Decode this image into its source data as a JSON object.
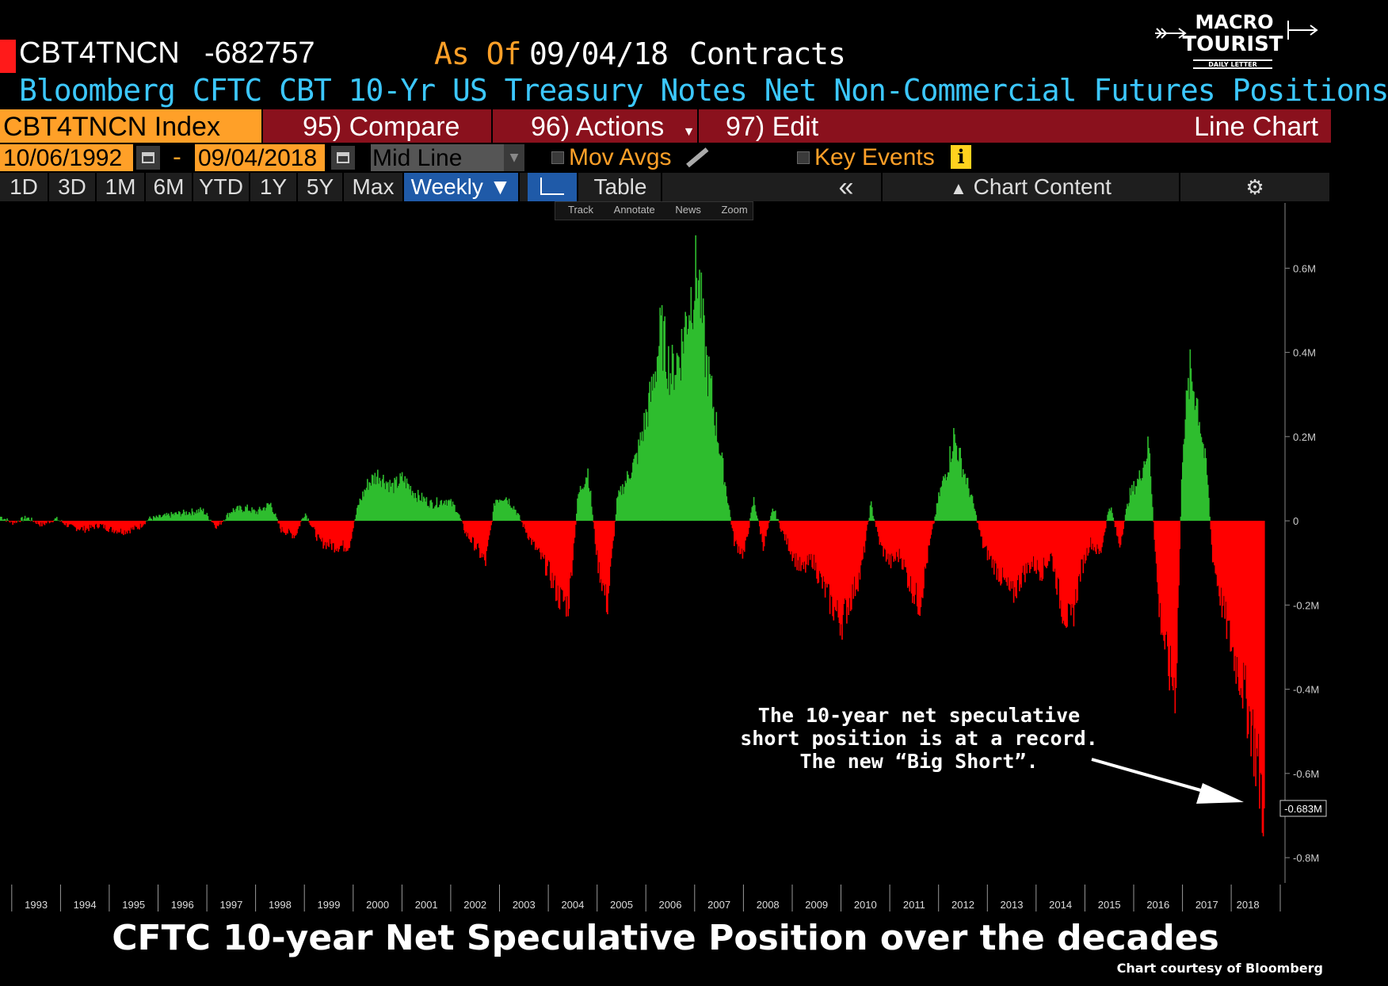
{
  "header": {
    "ticker": "CBT4TNCN",
    "last_value": "-682757",
    "as_of_label": "As Of",
    "as_of_date": "09/04/18",
    "units": "Contracts",
    "subtitle": "Bloomberg CFTC CBT 10-Yr US Treasury Notes Net Non-Commercial Futures Positions"
  },
  "menubar": {
    "index_label": "CBT4TNCN Index",
    "compare_label": "95) Compare",
    "actions_label": "96) Actions",
    "edit_label": "97) Edit",
    "chart_type_label": "Line Chart",
    "accent_color": "#ffa028",
    "bar_color": "#8a111d"
  },
  "datebar": {
    "start_date": "10/06/1992",
    "separator": "-",
    "end_date": "09/04/2018",
    "line_mode": "Mid Line",
    "mov_avgs_label": "Mov Avgs",
    "key_events_label": "Key Events",
    "info_label": "i"
  },
  "toolbar": {
    "ranges": [
      "1D",
      "3D",
      "1M",
      "6M",
      "YTD",
      "1Y",
      "5Y",
      "Max"
    ],
    "frequency": "Weekly ▼",
    "table_label": "Table",
    "collapse_label": "«",
    "chart_content_label": "Chart Content",
    "subtools": [
      "Track",
      "Annotate",
      "News",
      "Zoom"
    ]
  },
  "logo": {
    "line1": "MACRO",
    "line2": "TOURIST",
    "tagline": "DAILY LETTER"
  },
  "chart_data": {
    "type": "bar",
    "title": "CFTC 10-year Net Speculative Position over the decades",
    "xlabel": "",
    "ylabel": "",
    "x_range": [
      1992.76,
      2018.68
    ],
    "ylim": [
      -0.83,
      0.74
    ],
    "y_ticks": [
      {
        "value": 0.6,
        "label": "0.6M"
      },
      {
        "value": 0.4,
        "label": "0.4M"
      },
      {
        "value": 0.2,
        "label": "0.2M"
      },
      {
        "value": 0,
        "label": "0"
      },
      {
        "value": -0.2,
        "label": "-0.2M"
      },
      {
        "value": -0.4,
        "label": "-0.4M"
      },
      {
        "value": -0.6,
        "label": "-0.6M"
      },
      {
        "value": -0.8,
        "label": "-0.8M"
      }
    ],
    "x_ticks": [
      "1993",
      "1994",
      "1995",
      "1996",
      "1997",
      "1998",
      "1999",
      "2000",
      "2001",
      "2002",
      "2003",
      "2004",
      "2005",
      "2006",
      "2007",
      "2008",
      "2009",
      "2010",
      "2011",
      "2012",
      "2013",
      "2014",
      "2015",
      "2016",
      "2017",
      "2018"
    ],
    "positive_color": "#2ebd2e",
    "negative_color": "#ff0000",
    "last_value_label": "-0.683M",
    "last_value": -0.683,
    "grid": false,
    "series": [
      {
        "name": "CBT4TNCN",
        "points": [
          [
            1992.76,
            0.01
          ],
          [
            1993.0,
            -0.005
          ],
          [
            1993.3,
            0.008
          ],
          [
            1993.6,
            -0.01
          ],
          [
            1993.9,
            0.005
          ],
          [
            1994.2,
            -0.015
          ],
          [
            1994.5,
            -0.02
          ],
          [
            1994.8,
            -0.01
          ],
          [
            1995.0,
            -0.02
          ],
          [
            1995.3,
            -0.025
          ],
          [
            1995.6,
            -0.015
          ],
          [
            1995.8,
            0.005
          ],
          [
            1996.0,
            0.008
          ],
          [
            1996.3,
            0.015
          ],
          [
            1996.6,
            0.02
          ],
          [
            1996.9,
            0.025
          ],
          [
            1997.2,
            -0.015
          ],
          [
            1997.5,
            0.025
          ],
          [
            1997.8,
            0.03
          ],
          [
            1998.0,
            0.02
          ],
          [
            1998.3,
            0.04
          ],
          [
            1998.5,
            -0.02
          ],
          [
            1998.8,
            -0.035
          ],
          [
            1999.0,
            0.02
          ],
          [
            1999.3,
            -0.05
          ],
          [
            1999.6,
            -0.06
          ],
          [
            1999.9,
            -0.06
          ],
          [
            2000.1,
            0.04
          ],
          [
            2000.3,
            0.09
          ],
          [
            2000.5,
            0.11
          ],
          [
            2000.8,
            0.08
          ],
          [
            2001.0,
            0.1
          ],
          [
            2001.3,
            0.06
          ],
          [
            2001.6,
            0.04
          ],
          [
            2001.9,
            0.05
          ],
          [
            2002.1,
            0.03
          ],
          [
            2002.3,
            -0.03
          ],
          [
            2002.5,
            -0.06
          ],
          [
            2002.7,
            -0.1
          ],
          [
            2002.9,
            0.05
          ],
          [
            2003.1,
            0.06
          ],
          [
            2003.3,
            0.03
          ],
          [
            2003.6,
            -0.04
          ],
          [
            2003.8,
            -0.08
          ],
          [
            2004.0,
            -0.12
          ],
          [
            2004.2,
            -0.18
          ],
          [
            2004.4,
            -0.2
          ],
          [
            2004.6,
            0.06
          ],
          [
            2004.8,
            0.12
          ],
          [
            2005.0,
            -0.1
          ],
          [
            2005.2,
            -0.2
          ],
          [
            2005.4,
            0.05
          ],
          [
            2005.6,
            0.1
          ],
          [
            2005.8,
            0.15
          ],
          [
            2005.9,
            0.2
          ],
          [
            2006.1,
            0.3
          ],
          [
            2006.3,
            0.45
          ],
          [
            2006.5,
            0.35
          ],
          [
            2006.7,
            0.4
          ],
          [
            2006.85,
            0.5
          ],
          [
            2007.05,
            0.6
          ],
          [
            2007.2,
            0.4
          ],
          [
            2007.4,
            0.25
          ],
          [
            2007.6,
            0.1
          ],
          [
            2007.8,
            -0.05
          ],
          [
            2008.0,
            -0.08
          ],
          [
            2008.2,
            0.05
          ],
          [
            2008.4,
            -0.06
          ],
          [
            2008.6,
            0.03
          ],
          [
            2008.8,
            -0.03
          ],
          [
            2009.0,
            -0.08
          ],
          [
            2009.2,
            -0.12
          ],
          [
            2009.4,
            -0.09
          ],
          [
            2009.6,
            -0.15
          ],
          [
            2009.8,
            -0.2
          ],
          [
            2010.0,
            -0.24
          ],
          [
            2010.2,
            -0.18
          ],
          [
            2010.4,
            -0.12
          ],
          [
            2010.6,
            0.04
          ],
          [
            2010.8,
            -0.06
          ],
          [
            2011.0,
            -0.1
          ],
          [
            2011.2,
            -0.08
          ],
          [
            2011.4,
            -0.15
          ],
          [
            2011.6,
            -0.2
          ],
          [
            2011.8,
            -0.06
          ],
          [
            2012.0,
            0.06
          ],
          [
            2012.2,
            0.14
          ],
          [
            2012.3,
            0.2
          ],
          [
            2012.5,
            0.12
          ],
          [
            2012.7,
            0.04
          ],
          [
            2012.9,
            -0.06
          ],
          [
            2013.1,
            -0.1
          ],
          [
            2013.3,
            -0.14
          ],
          [
            2013.5,
            -0.18
          ],
          [
            2013.7,
            -0.13
          ],
          [
            2013.9,
            -0.1
          ],
          [
            2014.1,
            -0.12
          ],
          [
            2014.3,
            -0.08
          ],
          [
            2014.5,
            -0.2
          ],
          [
            2014.7,
            -0.25
          ],
          [
            2014.9,
            -0.12
          ],
          [
            2015.1,
            -0.05
          ],
          [
            2015.3,
            -0.08
          ],
          [
            2015.5,
            0.04
          ],
          [
            2015.7,
            -0.06
          ],
          [
            2015.9,
            0.06
          ],
          [
            2016.1,
            0.1
          ],
          [
            2016.3,
            0.18
          ],
          [
            2016.5,
            -0.2
          ],
          [
            2016.7,
            -0.35
          ],
          [
            2016.85,
            -0.4
          ],
          [
            2017.0,
            0.2
          ],
          [
            2017.15,
            0.35
          ],
          [
            2017.3,
            0.28
          ],
          [
            2017.5,
            0.1
          ],
          [
            2017.6,
            -0.08
          ],
          [
            2017.8,
            -0.2
          ],
          [
            2018.0,
            -0.3
          ],
          [
            2018.2,
            -0.38
          ],
          [
            2018.4,
            -0.48
          ],
          [
            2018.55,
            -0.6
          ],
          [
            2018.68,
            -0.683
          ]
        ]
      }
    ]
  },
  "annotation": {
    "lines": [
      "The 10-year net speculative",
      "short position is at a record.",
      "The new “Big Short”."
    ]
  },
  "footer": {
    "title": "CFTC 10-year Net Speculative Position over the decades",
    "credit": "Chart courtesy of Bloomberg"
  }
}
